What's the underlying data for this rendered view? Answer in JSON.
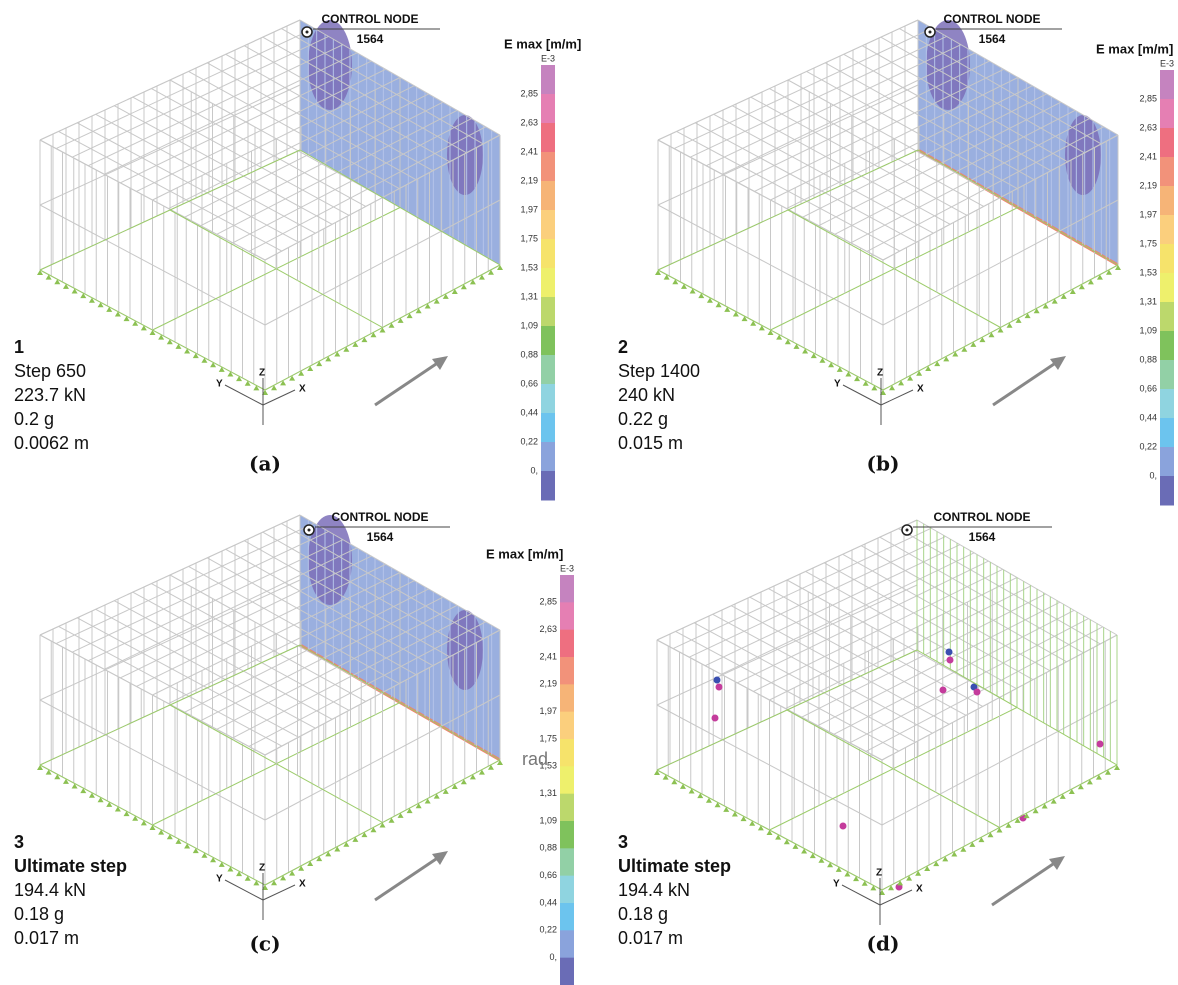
{
  "panels": [
    {
      "caption": "(a)",
      "control_node": {
        "label": "CONTROL NODE",
        "id": "1564"
      },
      "info": [
        "1",
        "Step 650",
        "223.7 kN",
        "0.2 g",
        "0.0062  m"
      ],
      "axes": {
        "z": "Z",
        "y": "Y",
        "x": "X"
      },
      "legend": {
        "title": "E max [m/m]",
        "exponent": "E-3",
        "labels": [
          "2,85",
          "2,63",
          "2,41",
          "2,19",
          "1,97",
          "1,75",
          "1,53",
          "1,31",
          "1,09",
          "0,88",
          "0,66",
          "0,44",
          "0,22",
          "0,"
        ]
      }
    },
    {
      "caption": "(b)",
      "control_node": {
        "label": "CONTROL NODE",
        "id": "1564"
      },
      "info": [
        "2",
        "Step 1400",
        "240 kN",
        "0.22 g",
        "0.015  m"
      ],
      "axes": {
        "z": "Z",
        "y": "Y",
        "x": "X"
      },
      "legend": {
        "title": "E max [m/m]",
        "exponent": "E-3",
        "labels": [
          "2,85",
          "2,63",
          "2,41",
          "2,19",
          "1,97",
          "1,75",
          "1,53",
          "1,31",
          "1,09",
          "0,88",
          "0,66",
          "0,44",
          "0,22",
          "0,"
        ]
      }
    },
    {
      "caption": "(c)",
      "control_node": {
        "label": "CONTROL NODE",
        "id": "1564"
      },
      "info": [
        "3",
        "Ultimate step",
        "194.4 kN",
        "0.18 g",
        "0.017 m"
      ],
      "axes": {
        "z": "Z",
        "y": "Y",
        "x": "X"
      },
      "legend": {
        "title": "E max [m/m]",
        "exponent": "E-3",
        "labels": [
          "2,85",
          "2,63",
          "2,41",
          "2,19",
          "1,97",
          "1,75",
          "1,53",
          "1,31",
          "1,09",
          "0,88",
          "0,66",
          "0,44",
          "0,22",
          "0,"
        ]
      },
      "annotation": "rad"
    },
    {
      "caption": "(d)",
      "control_node": {
        "label": "CONTROL NODE",
        "id": "1564"
      },
      "info": [
        "3",
        "Ultimate step",
        "194.4 kN",
        "0.18 g",
        "0.017 m"
      ],
      "axes": {
        "z": "Z",
        "y": "Y",
        "x": "X"
      }
    }
  ]
}
